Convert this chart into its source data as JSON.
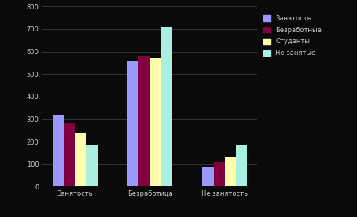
{
  "categories": [
    "Занятость",
    "Безработица",
    "Не занятость"
  ],
  "series": [
    {
      "label": "Занятость",
      "color": "#9999ff",
      "values": [
        320,
        555,
        90
      ]
    },
    {
      "label": "Безработные",
      "color": "#800040",
      "values": [
        280,
        580,
        110
      ]
    },
    {
      "label": "Студенты",
      "color": "#ffffaa",
      "values": [
        240,
        570,
        130
      ]
    },
    {
      "label": "Не занятые",
      "color": "#aaf0e0",
      "values": [
        185,
        710,
        185
      ]
    }
  ],
  "ylim": [
    0,
    800
  ],
  "yticks": [
    0,
    100,
    200,
    300,
    400,
    500,
    600,
    700,
    800
  ],
  "bar_width": 0.15,
  "figsize": [
    4.54,
    2.76
  ],
  "dpi": 100,
  "background_color": "#0a0a0a",
  "plot_bg_color": "#0a0a0a",
  "grid_color": "#444444",
  "text_color": "#cccccc",
  "legend_fontsize": 6,
  "tick_fontsize": 6
}
